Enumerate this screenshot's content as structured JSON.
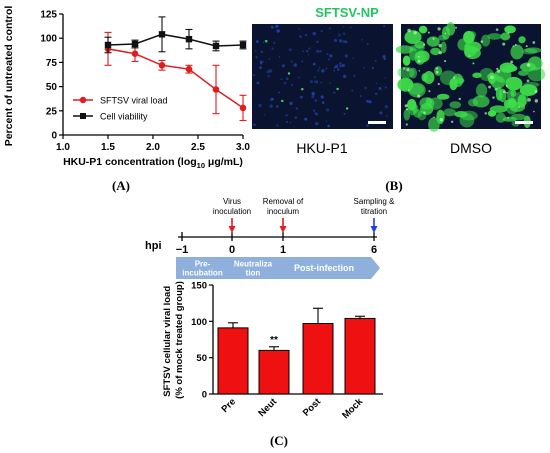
{
  "panel_labels": {
    "a": "(A)",
    "b": "(B)",
    "c": "(C)"
  },
  "panel_b": {
    "title": "SFTSV-NP",
    "title_color": "#22c55e",
    "images": [
      {
        "caption": "HKU-P1",
        "style": "sparse-green-on-blue"
      },
      {
        "caption": "DMSO",
        "style": "dense-green-cells"
      }
    ],
    "colors": {
      "background": "#0a1430",
      "nuclei": "#1f3fa3",
      "stain": "#3ddc4a"
    }
  },
  "timeline": {
    "axis_label": "hpi",
    "ticks": [
      "−1",
      "0",
      "1",
      "6"
    ],
    "tick_values": [
      -1,
      0,
      1,
      6
    ],
    "events": [
      {
        "at": 0,
        "label_lines": [
          "Virus",
          "inoculation"
        ],
        "arrow_color": "#e11d1d"
      },
      {
        "at": 1,
        "label_lines": [
          "Removal of",
          "inoculum"
        ],
        "arrow_color": "#e11d1d"
      },
      {
        "at": 6,
        "label_lines": [
          "Sampling &",
          "titration"
        ],
        "arrow_color": "#1d3fe1"
      }
    ],
    "phases": [
      {
        "label_lines": [
          "Pre-",
          "incubation"
        ],
        "from": -1,
        "to": 0
      },
      {
        "label_lines": [
          "Neutraliza",
          "tion"
        ],
        "from": 0,
        "to": 1
      },
      {
        "label_lines": [
          "Post-infection"
        ],
        "from": 1,
        "to": 6
      }
    ],
    "phase_color": "#8fb0dc"
  },
  "chart_data": [
    {
      "id": "A",
      "type": "line",
      "xlabel": "HKU-P1 concentration (log10 μg/mL)",
      "ylabel": "Percent of untreated control",
      "xlim": [
        1.0,
        3.0
      ],
      "ylim": [
        0,
        125
      ],
      "xticks": [
        1.0,
        1.5,
        2.0,
        2.5,
        3.0
      ],
      "yticks": [
        0,
        25,
        50,
        75,
        100,
        125
      ],
      "legend_position": "center-left",
      "series": [
        {
          "name": "SFTSV viral load",
          "color": "#e11d1d",
          "marker": "circle",
          "x": [
            1.5,
            1.8,
            2.1,
            2.4,
            2.7,
            3.0
          ],
          "y": [
            89,
            84,
            72,
            68,
            47,
            28
          ],
          "err": [
            17,
            8,
            5,
            4,
            25,
            13
          ]
        },
        {
          "name": "Cell viability",
          "color": "#111111",
          "marker": "square",
          "x": [
            1.5,
            1.8,
            2.1,
            2.4,
            2.7,
            3.0
          ],
          "y": [
            93,
            94,
            104,
            99,
            92,
            93
          ],
          "err": [
            8,
            4,
            18,
            10,
            5,
            4
          ]
        }
      ]
    },
    {
      "id": "C",
      "type": "bar",
      "ylabel_lines": [
        "SFTSV cellular viral load",
        "(% of mock treated group)"
      ],
      "categories": [
        "Pre",
        "Neut",
        "Post",
        "Mock"
      ],
      "values": [
        91,
        60,
        97,
        104
      ],
      "err": [
        7,
        5,
        21,
        3
      ],
      "annotations": [
        "",
        "**",
        "",
        ""
      ],
      "ylim": [
        0,
        150
      ],
      "yticks": [
        0,
        50,
        100,
        150
      ],
      "bar_color": "#ef1111"
    }
  ]
}
